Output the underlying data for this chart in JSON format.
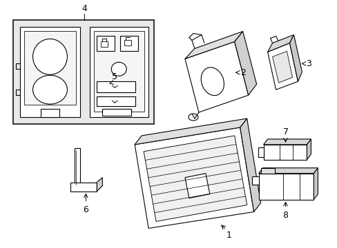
{
  "background_color": "#ffffff",
  "line_color": "#000000",
  "line_width": 0.8,
  "font_size": 8,
  "figsize": [
    4.89,
    3.6
  ],
  "dpi": 100,
  "label_font_size": 9
}
